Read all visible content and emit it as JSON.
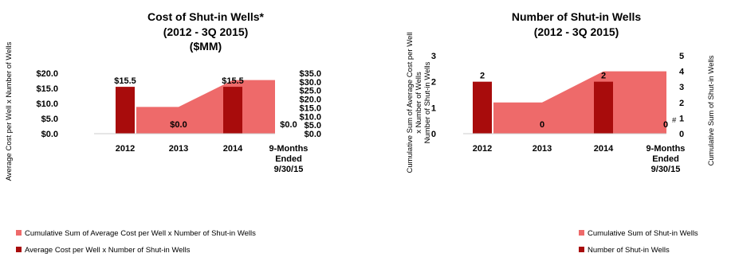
{
  "chart_data": [
    {
      "type": "bar+area",
      "title_lines": [
        "Cost of Shut-in Wells*",
        "(2012 - 3Q 2015)",
        "($MM)"
      ],
      "categories": [
        [
          "2012"
        ],
        [
          "2013"
        ],
        [
          "2014"
        ],
        [
          "9-Months",
          "Ended",
          "9/30/15"
        ]
      ],
      "ylabel_left": "Average Cost per Well x Number of Wells",
      "ylabel_right": "",
      "y_left": {
        "range": [
          0,
          20
        ],
        "ticks": [
          "$0.0",
          "$5.0",
          "$10.0",
          "$15.0",
          "$20.0"
        ]
      },
      "y_right": {
        "range": [
          0,
          35
        ],
        "ticks": [
          "$0.0",
          "$5.0",
          "$10.0",
          "$15.0",
          "$20.0",
          "$25.0",
          "$30.0",
          "$35.0"
        ]
      },
      "series": [
        {
          "name": "Cumulative Sum of Average Cost per Well x Number of Shut-in Wells",
          "kind": "area",
          "axis": "right",
          "color": "#ee6a6a",
          "values": [
            15.5,
            15.5,
            31.0,
            31.0
          ]
        },
        {
          "name": "Average Cost per Well x Number of Shut-in Wells",
          "kind": "bar",
          "axis": "left",
          "color": "#a80c0c",
          "values": [
            15.5,
            0.0,
            15.5,
            0.0
          ],
          "data_labels": [
            "$15.5",
            "$0.0",
            "$15.5",
            "$0.0"
          ]
        }
      ],
      "grid": false,
      "legend_position": "bottom"
    },
    {
      "type": "bar+area",
      "title_lines": [
        "Number of Shut-in Wells",
        "(2012 - 3Q 2015)"
      ],
      "categories": [
        [
          "2012"
        ],
        [
          "2013"
        ],
        [
          "2014"
        ],
        [
          "9-Months",
          "Ended",
          "9/30/15"
        ]
      ],
      "ylabel_left_lines": [
        "Cumulative Sum of Average Cost per Well",
        "x Number of Wells",
        "Number of Shut-in Wells"
      ],
      "ylabel_right": "Cumulative Sum of Shut-in Wells",
      "y_left": {
        "range": [
          0,
          3
        ],
        "ticks": [
          "0",
          "1",
          "2",
          "3"
        ]
      },
      "y_right": {
        "range": [
          0,
          5
        ],
        "ticks": [
          "0",
          "1",
          "2",
          "3",
          "4",
          "5"
        ]
      },
      "series": [
        {
          "name": "Cumulative Sum of Shut-in Wells",
          "kind": "area",
          "axis": "right",
          "color": "#ee6a6a",
          "values": [
            2,
            2,
            4,
            4
          ]
        },
        {
          "name": "Number of Shut-in Wells",
          "kind": "bar",
          "axis": "left",
          "color": "#a80c0c",
          "values": [
            2,
            0,
            2,
            0
          ],
          "data_labels": [
            "2",
            "0",
            "2",
            "0"
          ],
          "label_superscripts": [
            "",
            "",
            "",
            "#"
          ]
        }
      ],
      "grid": false,
      "legend_position": "bottom"
    }
  ]
}
